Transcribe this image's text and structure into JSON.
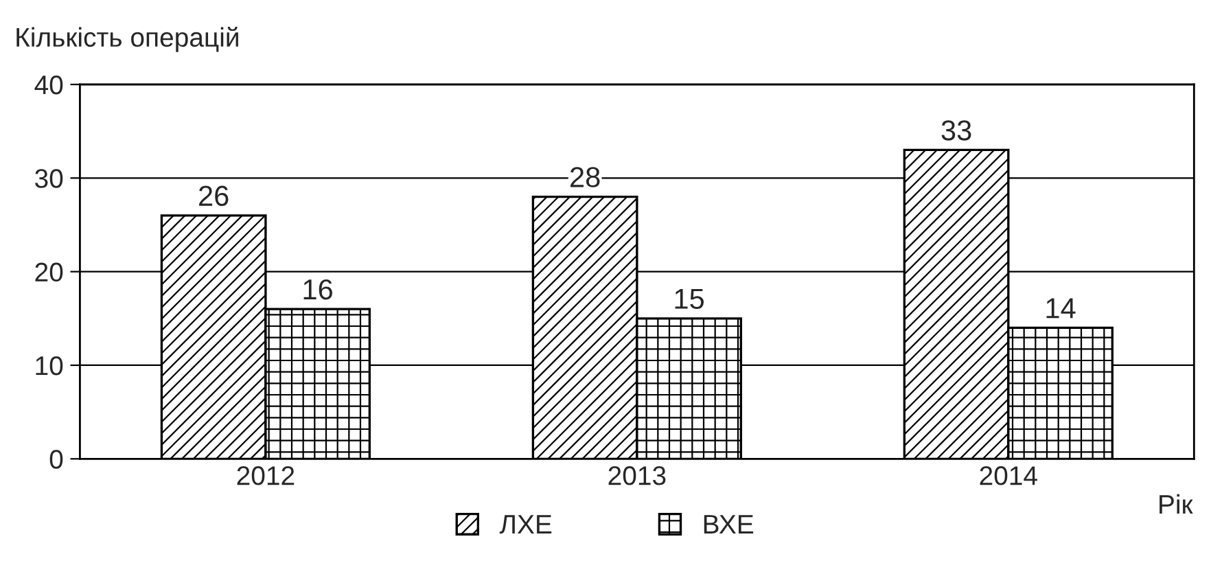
{
  "chart_data": {
    "type": "bar",
    "xlabel": "Рік",
    "ylabel": "Кількість операцій",
    "categories": [
      "2012",
      "2013",
      "2014"
    ],
    "series": [
      {
        "name": "ЛХЕ",
        "color": "#000000",
        "values": [
          26,
          28,
          33
        ]
      },
      {
        "name": "ВХЕ",
        "color": "#000000",
        "values": [
          16,
          15,
          14
        ]
      }
    ],
    "ylim": [
      0,
      40
    ],
    "yticks": [
      0,
      10,
      20,
      30,
      40
    ],
    "grid": "y",
    "legend": "bottom",
    "data_labels": true
  }
}
